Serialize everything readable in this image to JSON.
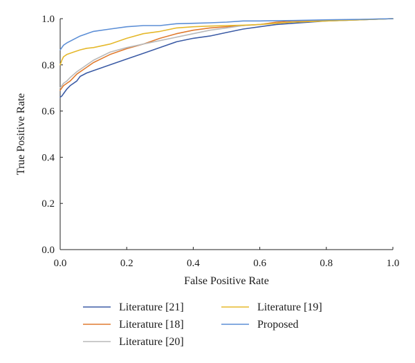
{
  "chart_data": {
    "type": "line",
    "xlabel": "False Positive Rate",
    "ylabel": "True Positive Rate",
    "xlim": [
      0.0,
      1.0
    ],
    "ylim": [
      0.0,
      1.0
    ],
    "xticks": [
      "0.0",
      "0.2",
      "0.4",
      "0.6",
      "0.8",
      "1.0"
    ],
    "yticks": [
      "0.0",
      "0.2",
      "0.4",
      "0.6",
      "0.8",
      "1.0"
    ],
    "grid": false,
    "legend_position": "bottom",
    "series": [
      {
        "name": "Literature [21]",
        "color": "#3b5ba5",
        "x": [
          0.0,
          0.005,
          0.01,
          0.02,
          0.03,
          0.05,
          0.06,
          0.08,
          0.1,
          0.15,
          0.2,
          0.25,
          0.3,
          0.35,
          0.4,
          0.45,
          0.5,
          0.55,
          0.6,
          0.65,
          0.7,
          0.8,
          0.9,
          1.0
        ],
        "y": [
          0.66,
          0.665,
          0.675,
          0.695,
          0.71,
          0.73,
          0.75,
          0.765,
          0.775,
          0.8,
          0.825,
          0.85,
          0.875,
          0.9,
          0.915,
          0.925,
          0.94,
          0.955,
          0.965,
          0.975,
          0.98,
          0.99,
          0.995,
          1.0
        ]
      },
      {
        "name": "Literature [18]",
        "color": "#e07a2e",
        "x": [
          0.0,
          0.005,
          0.01,
          0.02,
          0.03,
          0.05,
          0.07,
          0.1,
          0.15,
          0.2,
          0.25,
          0.3,
          0.35,
          0.4,
          0.45,
          0.5,
          0.55,
          0.6,
          0.65,
          0.7,
          0.8,
          0.9,
          1.0
        ],
        "y": [
          0.69,
          0.7,
          0.71,
          0.72,
          0.73,
          0.76,
          0.78,
          0.81,
          0.845,
          0.87,
          0.89,
          0.915,
          0.935,
          0.95,
          0.96,
          0.965,
          0.97,
          0.975,
          0.985,
          0.99,
          0.992,
          0.996,
          1.0
        ]
      },
      {
        "name": "Literature [20]",
        "color": "#b9b9b9",
        "x": [
          0.0,
          0.005,
          0.01,
          0.02,
          0.03,
          0.05,
          0.07,
          0.1,
          0.15,
          0.2,
          0.25,
          0.3,
          0.35,
          0.4,
          0.45,
          0.5,
          0.55,
          0.6,
          0.65,
          0.7,
          0.8,
          0.9,
          1.0
        ],
        "y": [
          0.7,
          0.71,
          0.72,
          0.73,
          0.745,
          0.77,
          0.79,
          0.82,
          0.855,
          0.875,
          0.89,
          0.905,
          0.92,
          0.935,
          0.95,
          0.96,
          0.97,
          0.975,
          0.98,
          0.985,
          0.99,
          0.995,
          1.0
        ]
      },
      {
        "name": "Literature [19]",
        "color": "#e5b82a",
        "x": [
          0.0,
          0.005,
          0.01,
          0.02,
          0.04,
          0.06,
          0.08,
          0.1,
          0.15,
          0.2,
          0.25,
          0.3,
          0.35,
          0.4,
          0.45,
          0.5,
          0.55,
          0.6,
          0.65,
          0.7,
          0.8,
          0.9,
          1.0
        ],
        "y": [
          0.8,
          0.82,
          0.835,
          0.845,
          0.855,
          0.865,
          0.872,
          0.875,
          0.89,
          0.915,
          0.935,
          0.945,
          0.96,
          0.965,
          0.968,
          0.97,
          0.972,
          0.975,
          0.98,
          0.985,
          0.99,
          0.995,
          1.0
        ]
      },
      {
        "name": "Proposed",
        "color": "#5b8ed6",
        "x": [
          0.0,
          0.005,
          0.01,
          0.02,
          0.04,
          0.06,
          0.08,
          0.1,
          0.15,
          0.2,
          0.25,
          0.3,
          0.35,
          0.4,
          0.45,
          0.5,
          0.55,
          0.6,
          0.7,
          0.8,
          0.9,
          1.0
        ],
        "y": [
          0.865,
          0.875,
          0.885,
          0.895,
          0.91,
          0.925,
          0.935,
          0.945,
          0.955,
          0.965,
          0.97,
          0.97,
          0.978,
          0.98,
          0.982,
          0.985,
          0.99,
          0.99,
          0.992,
          0.995,
          0.997,
          1.0
        ]
      }
    ]
  }
}
